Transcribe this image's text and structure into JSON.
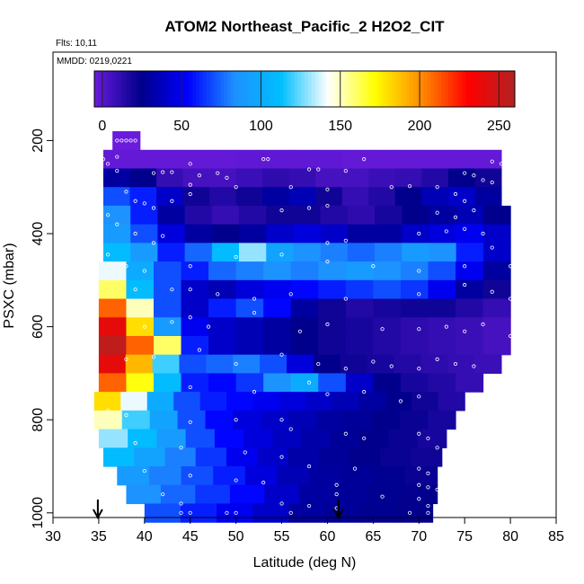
{
  "chart_data": {
    "type": "heatmap",
    "title": "ATOM2 Northeast_Pacific_2 H2O2_CIT",
    "flights_text": "Flts: 10,11",
    "dates_text": "MMDD: 0219,0221",
    "xlabel": "Latitude (deg N)",
    "ylabel": "PSXC (mbar)",
    "xlim": [
      30,
      85
    ],
    "ylim": [
      1010,
      10
    ],
    "x_ticks": [
      "30",
      "35",
      "40",
      "45",
      "50",
      "55",
      "60",
      "65",
      "70",
      "75",
      "80",
      "85"
    ],
    "y_ticks": [
      "200",
      "400",
      "600",
      "800",
      "1000"
    ],
    "colorbar": {
      "range": [
        -5,
        260
      ],
      "ticks": [
        "0",
        "50",
        "100",
        "150",
        "200",
        "250"
      ],
      "stops": [
        "#6a1bdc",
        "#00008b",
        "#0000ff",
        "#1e90ff",
        "#00bfff",
        "#ffffff",
        "#ffff00",
        "#ff8c00",
        "#ff0000",
        "#b22222"
      ]
    },
    "markers_lat": [
      34.9,
      61.2
    ],
    "rows": [
      {
        "p": 200,
        "x0": 36.5,
        "x1": 39.5,
        "v": [
          -5
        ]
      },
      {
        "p": 240,
        "x0": 35.5,
        "x1": 79.0,
        "v": [
          -3,
          -3,
          -3,
          -3,
          -3,
          -2,
          -2,
          -2,
          -2,
          -3,
          -3,
          -3,
          -3,
          -3,
          -3
        ]
      },
      {
        "p": 280,
        "x0": 35.5,
        "x1": 79.0,
        "v": [
          30,
          25,
          10,
          5,
          5,
          8,
          12,
          10,
          5,
          5,
          8,
          10,
          15,
          25,
          20
        ]
      },
      {
        "p": 320,
        "x0": 35.5,
        "x1": 79.0,
        "v": [
          70,
          60,
          40,
          20,
          15,
          20,
          30,
          35,
          20,
          10,
          15,
          25,
          35,
          40,
          30
        ]
      },
      {
        "p": 360,
        "x0": 35.5,
        "x1": 80.0,
        "v": [
          85,
          60,
          30,
          15,
          10,
          15,
          20,
          20,
          15,
          12,
          18,
          25,
          30,
          35,
          25
        ]
      },
      {
        "p": 400,
        "x0": 35.5,
        "x1": 80.0,
        "v": [
          90,
          70,
          45,
          30,
          25,
          30,
          40,
          45,
          40,
          30,
          30,
          40,
          45,
          50,
          40
        ]
      },
      {
        "p": 440,
        "x0": 35.5,
        "x1": 80.0,
        "v": [
          110,
          90,
          60,
          75,
          110,
          130,
          95,
          85,
          80,
          75,
          80,
          90,
          85,
          60,
          40
        ]
      },
      {
        "p": 480,
        "x0": 35.0,
        "x1": 80.0,
        "v": [
          140,
          100,
          70,
          60,
          75,
          80,
          85,
          80,
          85,
          90,
          85,
          80,
          70,
          50,
          30
        ]
      },
      {
        "p": 520,
        "x0": 35.0,
        "x1": 80.0,
        "v": [
          160,
          110,
          70,
          40,
          35,
          45,
          50,
          55,
          60,
          65,
          70,
          65,
          50,
          30,
          20
        ]
      },
      {
        "p": 560,
        "x0": 35.0,
        "x1": 80.0,
        "v": [
          210,
          150,
          70,
          40,
          60,
          70,
          55,
          30,
          20,
          15,
          18,
          20,
          20,
          15,
          10
        ]
      },
      {
        "p": 600,
        "x0": 35.0,
        "x1": 80.0,
        "v": [
          240,
          180,
          90,
          50,
          40,
          35,
          30,
          25,
          20,
          18,
          15,
          12,
          10,
          8,
          5
        ]
      },
      {
        "p": 640,
        "x0": 35.0,
        "x1": 80.0,
        "v": [
          255,
          210,
          160,
          60,
          40,
          35,
          30,
          25,
          20,
          18,
          15,
          12,
          10,
          8,
          5
        ]
      },
      {
        "p": 680,
        "x0": 35.0,
        "x1": 79.0,
        "v": [
          240,
          190,
          120,
          70,
          75,
          80,
          70,
          45,
          25,
          20,
          18,
          15,
          12,
          10,
          8
        ]
      },
      {
        "p": 720,
        "x0": 35.0,
        "x1": 77.0,
        "v": [
          210,
          170,
          110,
          60,
          55,
          65,
          85,
          100,
          70,
          40,
          25,
          18,
          15,
          10
        ]
      },
      {
        "p": 760,
        "x0": 34.5,
        "x1": 75.0,
        "v": [
          180,
          140,
          100,
          70,
          60,
          55,
          50,
          45,
          40,
          35,
          30,
          25,
          20,
          15
        ]
      },
      {
        "p": 800,
        "x0": 34.5,
        "x1": 74.0,
        "v": [
          150,
          120,
          95,
          70,
          55,
          45,
          40,
          35,
          30,
          28,
          25,
          22,
          18
        ]
      },
      {
        "p": 840,
        "x0": 35.0,
        "x1": 73.0,
        "v": [
          130,
          110,
          90,
          70,
          55,
          45,
          38,
          32,
          28,
          25,
          22,
          18
        ]
      },
      {
        "p": 880,
        "x0": 35.5,
        "x1": 72.5,
        "v": [
          110,
          95,
          80,
          65,
          50,
          40,
          32,
          28,
          25,
          22,
          20
        ]
      },
      {
        "p": 920,
        "x0": 37.0,
        "x1": 72.0,
        "v": [
          90,
          80,
          70,
          60,
          45,
          35,
          30,
          28,
          26,
          22
        ]
      },
      {
        "p": 960,
        "x0": 38.0,
        "x1": 72.0,
        "v": [
          85,
          75,
          65,
          55,
          40,
          30,
          28,
          26,
          24
        ]
      },
      {
        "p": 1000,
        "x0": 40.0,
        "x1": 71.5,
        "v": [
          70,
          60,
          50,
          40,
          30,
          28,
          26,
          24
        ]
      }
    ],
    "points": [
      [
        37,
        200
      ],
      [
        37.5,
        200
      ],
      [
        38,
        200
      ],
      [
        38.5,
        200
      ],
      [
        39,
        200
      ],
      [
        35.5,
        240
      ],
      [
        36,
        250
      ],
      [
        37,
        235
      ],
      [
        45,
        250
      ],
      [
        53,
        240
      ],
      [
        53.5,
        240
      ],
      [
        64,
        240
      ],
      [
        78,
        245
      ],
      [
        79,
        250
      ],
      [
        37,
        265
      ],
      [
        41,
        270
      ],
      [
        42,
        268
      ],
      [
        43,
        268
      ],
      [
        46,
        275
      ],
      [
        48,
        270
      ],
      [
        49,
        280
      ],
      [
        58,
        262
      ],
      [
        59,
        262
      ],
      [
        62,
        265
      ],
      [
        75,
        270
      ],
      [
        76,
        275
      ],
      [
        77,
        285
      ],
      [
        78,
        290
      ],
      [
        45,
        295
      ],
      [
        50,
        300
      ],
      [
        56,
        300
      ],
      [
        60,
        305
      ],
      [
        67,
        300
      ],
      [
        69,
        298
      ],
      [
        72,
        300
      ],
      [
        74,
        315
      ],
      [
        75,
        330
      ],
      [
        38,
        310
      ],
      [
        39,
        330
      ],
      [
        40,
        335
      ],
      [
        41,
        345
      ],
      [
        43,
        330
      ],
      [
        45,
        315
      ],
      [
        55,
        350
      ],
      [
        58,
        345
      ],
      [
        60,
        340
      ],
      [
        72,
        355
      ],
      [
        74,
        365
      ],
      [
        76,
        350
      ],
      [
        36,
        360
      ],
      [
        37,
        380
      ],
      [
        39,
        400
      ],
      [
        41,
        420
      ],
      [
        42,
        405
      ],
      [
        60,
        420
      ],
      [
        62,
        415
      ],
      [
        70,
        400
      ],
      [
        73,
        395
      ],
      [
        75,
        390
      ],
      [
        77,
        400
      ],
      [
        78,
        430
      ],
      [
        36,
        445
      ],
      [
        38,
        470
      ],
      [
        40,
        480
      ],
      [
        45,
        470
      ],
      [
        50,
        450
      ],
      [
        55,
        445
      ],
      [
        60,
        460
      ],
      [
        65,
        470
      ],
      [
        70,
        480
      ],
      [
        75,
        470
      ],
      [
        80,
        470
      ],
      [
        39,
        520
      ],
      [
        43,
        520
      ],
      [
        45,
        520
      ],
      [
        48,
        530
      ],
      [
        52,
        540
      ],
      [
        56,
        530
      ],
      [
        62,
        540
      ],
      [
        70,
        530
      ],
      [
        75,
        510
      ],
      [
        78,
        525
      ],
      [
        80,
        540
      ],
      [
        40,
        600
      ],
      [
        43,
        590
      ],
      [
        45,
        580
      ],
      [
        47,
        600
      ],
      [
        52,
        570
      ],
      [
        57,
        610
      ],
      [
        60,
        595
      ],
      [
        66,
        605
      ],
      [
        70,
        605
      ],
      [
        73,
        600
      ],
      [
        75,
        610
      ],
      [
        77,
        595
      ],
      [
        80,
        620
      ],
      [
        38,
        670
      ],
      [
        41,
        665
      ],
      [
        46,
        650
      ],
      [
        50,
        680
      ],
      [
        55,
        660
      ],
      [
        59,
        680
      ],
      [
        62,
        690
      ],
      [
        65,
        675
      ],
      [
        67,
        685
      ],
      [
        70,
        690
      ],
      [
        72,
        670
      ],
      [
        74,
        680
      ],
      [
        76,
        685
      ],
      [
        45,
        730
      ],
      [
        52,
        740
      ],
      [
        58,
        720
      ],
      [
        60,
        745
      ],
      [
        64,
        740
      ],
      [
        68,
        760
      ],
      [
        70,
        750
      ],
      [
        36,
        780
      ],
      [
        38,
        790
      ],
      [
        45,
        805
      ],
      [
        50,
        800
      ],
      [
        55,
        800
      ],
      [
        56,
        820
      ],
      [
        62,
        830
      ],
      [
        64,
        840
      ],
      [
        70,
        830
      ],
      [
        71,
        840
      ],
      [
        72,
        860
      ],
      [
        39,
        850
      ],
      [
        44,
        860
      ],
      [
        51,
        870
      ],
      [
        55,
        880
      ],
      [
        58,
        900
      ],
      [
        63,
        905
      ],
      [
        70,
        905
      ],
      [
        71,
        915
      ],
      [
        40,
        910
      ],
      [
        45,
        920
      ],
      [
        50,
        930
      ],
      [
        53,
        935
      ],
      [
        61,
        940
      ],
      [
        70,
        940
      ],
      [
        71,
        945
      ],
      [
        72,
        950
      ],
      [
        73,
        955
      ],
      [
        42,
        960
      ],
      [
        44,
        980
      ],
      [
        55,
        980
      ],
      [
        58,
        985
      ],
      [
        61,
        960
      ],
      [
        66,
        965
      ],
      [
        70,
        970
      ],
      [
        71,
        985
      ],
      [
        44,
        1000
      ],
      [
        45,
        1000
      ],
      [
        49,
        1000
      ],
      [
        50,
        1000
      ],
      [
        56,
        1000
      ],
      [
        61,
        990
      ],
      [
        69,
        1000
      ],
      [
        71,
        1000
      ]
    ]
  }
}
